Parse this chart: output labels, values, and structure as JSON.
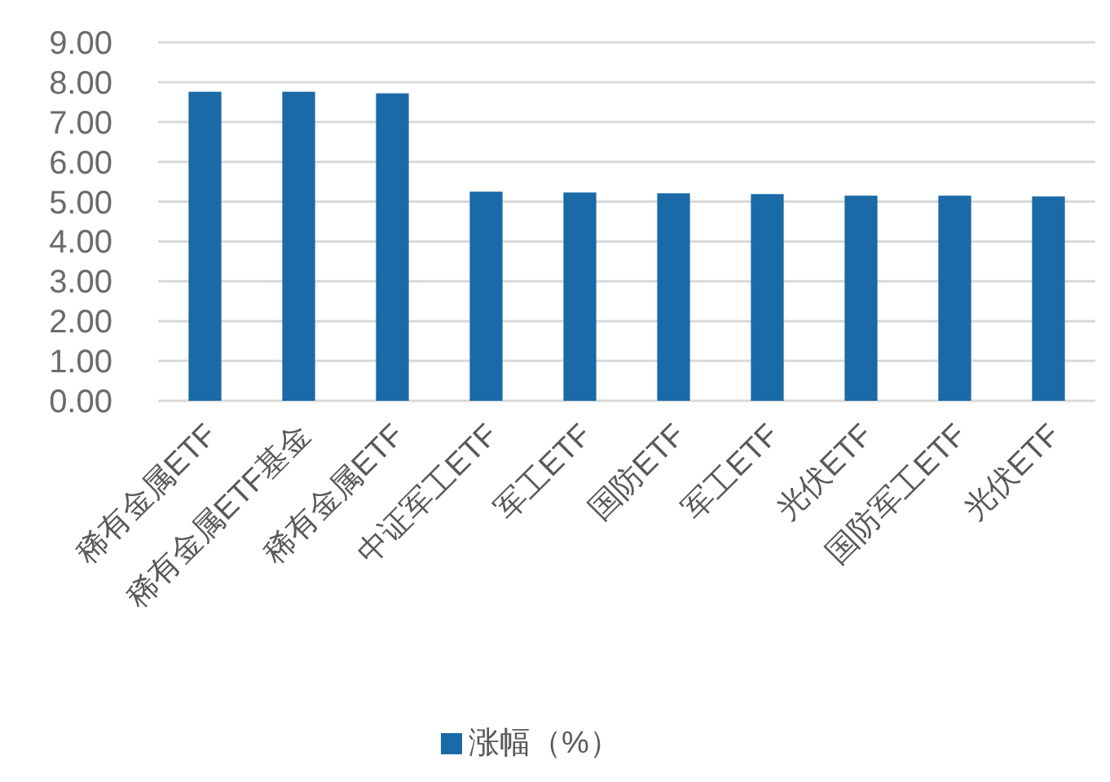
{
  "chart_data": {
    "type": "bar",
    "categories": [
      "稀有金属ETF",
      "稀有金属ETF基金",
      "稀有金属ETF",
      "中证军工ETF",
      "军工ETF",
      "国防ETF",
      "军工ETF",
      "光伏ETF",
      "国防军工ETF",
      "光伏ETF"
    ],
    "series": [
      {
        "name": "涨幅（%）",
        "color": "#1a6aa8",
        "values": [
          7.76,
          7.76,
          7.72,
          5.25,
          5.23,
          5.21,
          5.19,
          5.15,
          5.15,
          5.13
        ]
      }
    ],
    "ylim": [
      0,
      9
    ],
    "yticks": [
      {
        "value": 0,
        "label": "0.00"
      },
      {
        "value": 1,
        "label": "1.00"
      },
      {
        "value": 2,
        "label": "2.00"
      },
      {
        "value": 3,
        "label": "3.00"
      },
      {
        "value": 4,
        "label": "4.00"
      },
      {
        "value": 5,
        "label": "5.00"
      },
      {
        "value": 6,
        "label": "6.00"
      },
      {
        "value": 7,
        "label": "7.00"
      },
      {
        "value": 8,
        "label": "8.00"
      },
      {
        "value": 9,
        "label": "9.00"
      }
    ],
    "grid": "y",
    "legend": "bottom"
  }
}
